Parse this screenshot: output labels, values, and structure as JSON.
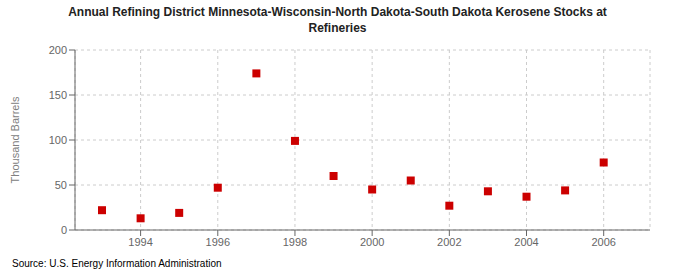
{
  "chart_data": {
    "type": "scatter",
    "title": "Annual Refining District Minnesota-Wisconsin-North Dakota-South Dakota Kerosene Stocks at\nRefineries",
    "ylabel": "Thousand Barrels",
    "source": "Source: U.S. Energy Information Administration",
    "x": [
      1993,
      1994,
      1995,
      1996,
      1997,
      1998,
      1999,
      2000,
      2001,
      2002,
      2003,
      2004,
      2005,
      2006
    ],
    "values": [
      22,
      13,
      19,
      47,
      174,
      99,
      60,
      45,
      55,
      27,
      43,
      37,
      44,
      75
    ],
    "color": "#cc0000",
    "marker": "square",
    "xlim": [
      1992.3,
      2007.2
    ],
    "ylim": [
      0,
      200
    ],
    "yticks": [
      0,
      50,
      100,
      150,
      200
    ],
    "xticks": [
      1994,
      1996,
      1998,
      2000,
      2002,
      2004,
      2006
    ],
    "grid": true
  }
}
